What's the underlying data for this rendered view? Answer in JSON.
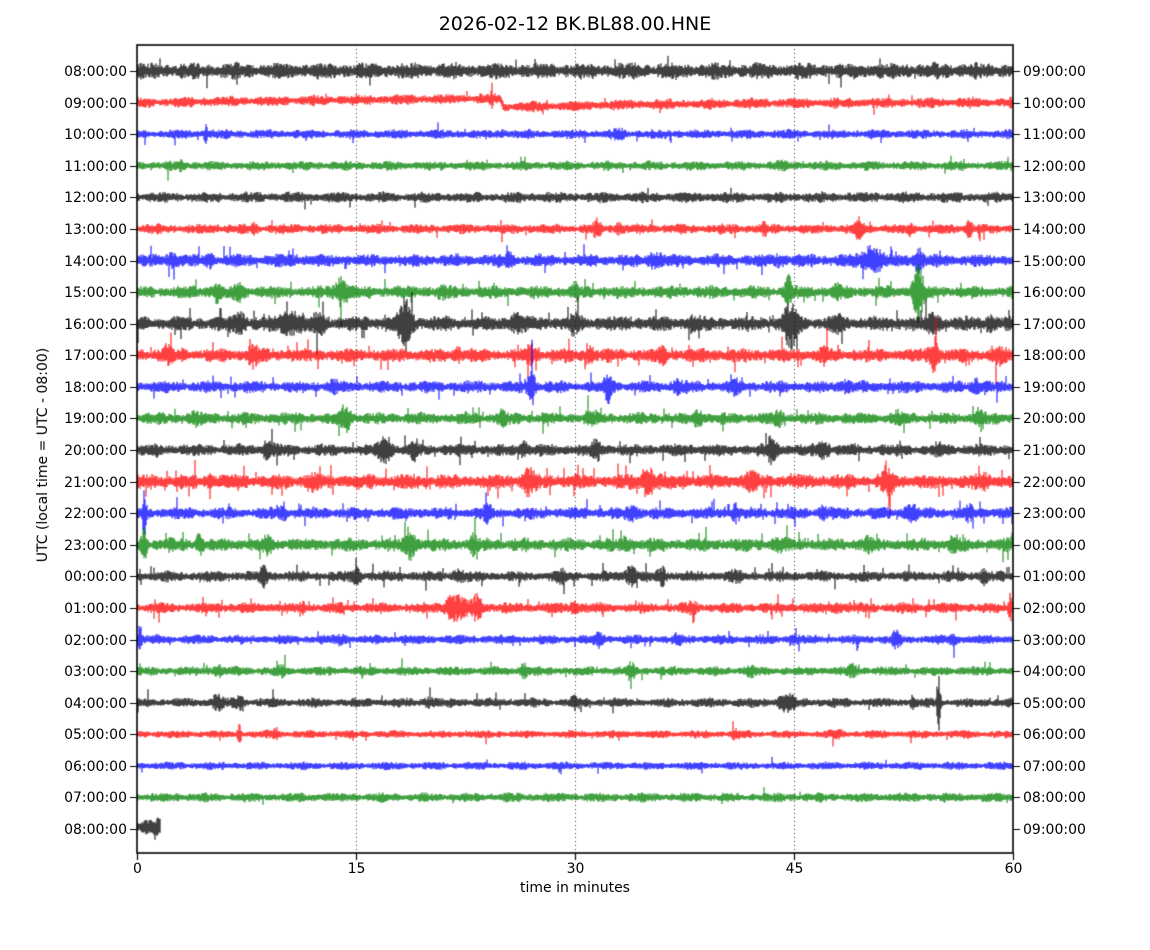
{
  "chart_data": {
    "type": "line",
    "subtype": "helicorder-dayplot",
    "title": "2026-02-12 BK.BL88.00.HNE",
    "date": "2026-02-12",
    "station_id": "BK.BL88.00.HNE",
    "xlabel": "time in minutes",
    "ylabel": "UTC (local time = UTC - 08:00)",
    "xlim": [
      0,
      60
    ],
    "xticks": [
      "0",
      "15",
      "30",
      "45",
      "60"
    ],
    "grid_minutes": [
      15,
      30,
      45
    ],
    "minutes_per_line": 60,
    "utc_offset_hours": -8,
    "grid_on": true,
    "legend": "none",
    "trace_colors": {
      "black": "#000000",
      "red": "#ff0000",
      "blue": "#0000ff",
      "green": "#008000"
    },
    "rows": [
      {
        "utc": "08:00:00",
        "right": "09:00:00",
        "color": "black",
        "amp": 4.8,
        "sp": 0.01,
        "events": []
      },
      {
        "utc": "09:00:00",
        "right": "10:00:00",
        "color": "red",
        "amp": 3.2,
        "sp": 0.008,
        "events": [
          [
            24.3,
            8,
            0.08
          ]
        ],
        "shift": [
          [
            0,
            0
          ],
          [
            5,
            -1
          ],
          [
            15,
            -2.5
          ],
          [
            24,
            -4
          ],
          [
            24.9,
            -4.2
          ],
          [
            25.1,
            4.5
          ],
          [
            28,
            4
          ],
          [
            34,
            2
          ],
          [
            45,
            0.5
          ],
          [
            60,
            0
          ]
        ]
      },
      {
        "utc": "10:00:00",
        "right": "11:00:00",
        "color": "blue",
        "amp": 2.8,
        "sp": 0.02,
        "events": [
          [
            4.7,
            6,
            0.12
          ],
          [
            25,
            1.5,
            0.3
          ],
          [
            33,
            2,
            0.3
          ]
        ]
      },
      {
        "utc": "11:00:00",
        "right": "12:00:00",
        "color": "green",
        "amp": 2.8,
        "sp": 0.015,
        "events": [
          [
            3,
            1.5,
            0.3
          ],
          [
            44,
            1.5,
            0.3
          ]
        ]
      },
      {
        "utc": "12:00:00",
        "right": "13:00:00",
        "color": "black",
        "amp": 3.2,
        "sp": 0.01,
        "events": []
      },
      {
        "utc": "13:00:00",
        "right": "14:00:00",
        "color": "red",
        "amp": 3.0,
        "sp": 0.03,
        "events": [
          [
            8,
            2.5,
            0.2
          ],
          [
            31.5,
            4.5,
            0.25
          ],
          [
            33,
            3.5,
            0.2
          ],
          [
            43,
            2.5,
            0.2
          ],
          [
            49.5,
            5,
            0.3
          ],
          [
            53,
            3,
            0.2
          ],
          [
            57,
            4.5,
            0.25
          ]
        ]
      },
      {
        "utc": "14:00:00",
        "right": "15:00:00",
        "color": "blue",
        "amp": 3.8,
        "sp": 0.03,
        "events": [
          [
            2.5,
            4,
            0.4
          ],
          [
            5,
            3,
            0.3
          ],
          [
            25.5,
            3,
            0.3
          ],
          [
            35.5,
            5,
            0.4
          ],
          [
            44,
            3,
            0.3
          ],
          [
            50.3,
            8,
            0.7
          ],
          [
            53.5,
            7,
            0.3
          ]
        ]
      },
      {
        "utc": "15:00:00",
        "right": "16:00:00",
        "color": "green",
        "amp": 3.8,
        "sp": 0.04,
        "events": [
          [
            5.5,
            5,
            0.4
          ],
          [
            7,
            5,
            0.3
          ],
          [
            14,
            8,
            0.5
          ],
          [
            21,
            3,
            0.3
          ],
          [
            30,
            3,
            0.3
          ],
          [
            44.6,
            11,
            0.2
          ],
          [
            48,
            3,
            0.3
          ],
          [
            53.5,
            20,
            0.35
          ]
        ]
      },
      {
        "utc": "16:00:00",
        "right": "17:00:00",
        "color": "black",
        "amp": 4.5,
        "sp": 0.06,
        "events": [
          [
            7,
            5,
            0.5
          ],
          [
            10.5,
            6,
            0.8
          ],
          [
            12.5,
            5,
            0.4
          ],
          [
            18.4,
            16,
            0.45
          ],
          [
            26,
            4,
            0.5
          ],
          [
            30,
            4,
            0.4
          ],
          [
            38,
            3,
            0.3
          ],
          [
            44.8,
            13,
            0.5
          ],
          [
            48,
            4,
            0.3
          ],
          [
            54.5,
            6,
            0.4
          ],
          [
            58.5,
            5,
            0.3
          ]
        ]
      },
      {
        "utc": "17:00:00",
        "right": "18:00:00",
        "color": "red",
        "amp": 4.2,
        "sp": 0.05,
        "events": [
          [
            2,
            4,
            0.3
          ],
          [
            8,
            5,
            0.4
          ],
          [
            22,
            3,
            0.3
          ],
          [
            27,
            5,
            0.3
          ],
          [
            31,
            4,
            0.3
          ],
          [
            36,
            3,
            0.3
          ],
          [
            47,
            3,
            0.3
          ],
          [
            54.6,
            10,
            0.35
          ],
          [
            59,
            4,
            0.3
          ]
        ]
      },
      {
        "utc": "18:00:00",
        "right": "19:00:00",
        "color": "blue",
        "amp": 3.6,
        "sp": 0.04,
        "events": [
          [
            13.5,
            3,
            0.3
          ],
          [
            27,
            12,
            0.25
          ],
          [
            32.3,
            9,
            0.25
          ],
          [
            37,
            4,
            0.3
          ],
          [
            41,
            3.5,
            0.3
          ],
          [
            48.5,
            3,
            0.3
          ],
          [
            57.5,
            4,
            0.3
          ]
        ]
      },
      {
        "utc": "19:00:00",
        "right": "20:00:00",
        "color": "green",
        "amp": 3.6,
        "sp": 0.04,
        "events": [
          [
            4,
            3,
            0.3
          ],
          [
            14.3,
            9,
            0.3
          ],
          [
            25,
            3,
            0.3
          ],
          [
            31,
            3,
            0.3
          ],
          [
            38.5,
            5,
            0.3
          ],
          [
            44,
            3,
            0.3
          ],
          [
            52,
            3,
            0.3
          ],
          [
            57.7,
            6,
            0.3
          ]
        ]
      },
      {
        "utc": "20:00:00",
        "right": "21:00:00",
        "color": "black",
        "amp": 3.6,
        "sp": 0.04,
        "events": [
          [
            9,
            5,
            0.4
          ],
          [
            17,
            10,
            0.4
          ],
          [
            19,
            5,
            0.3
          ],
          [
            26.5,
            4,
            0.3
          ],
          [
            31.5,
            5,
            0.3
          ],
          [
            43.5,
            7,
            0.4
          ],
          [
            47,
            5,
            0.4
          ],
          [
            55,
            3,
            0.3
          ]
        ]
      },
      {
        "utc": "21:00:00",
        "right": "22:00:00",
        "color": "red",
        "amp": 4.5,
        "sp": 0.06,
        "events": [
          [
            5,
            3,
            0.3
          ],
          [
            12,
            3,
            0.3
          ],
          [
            26.8,
            8,
            0.35
          ],
          [
            35,
            8,
            0.5
          ],
          [
            42,
            4,
            0.4
          ],
          [
            51.5,
            5,
            0.5
          ],
          [
            58,
            3,
            0.3
          ]
        ]
      },
      {
        "utc": "22:00:00",
        "right": "23:00:00",
        "color": "blue",
        "amp": 3.6,
        "sp": 0.04,
        "events": [
          [
            0.5,
            12,
            0.15
          ],
          [
            10,
            3,
            0.3
          ],
          [
            24,
            4,
            0.3
          ],
          [
            34,
            4,
            0.4
          ],
          [
            41,
            4,
            0.3
          ],
          [
            47,
            3,
            0.3
          ],
          [
            53,
            5,
            0.4
          ],
          [
            57,
            3,
            0.3
          ]
        ]
      },
      {
        "utc": "23:00:00",
        "right": "00:00:00",
        "color": "green",
        "amp": 4.0,
        "sp": 0.05,
        "events": [
          [
            0.5,
            8,
            0.2
          ],
          [
            4.3,
            5,
            0.3
          ],
          [
            9,
            4,
            0.3
          ],
          [
            18.7,
            9,
            0.35
          ],
          [
            23,
            4,
            0.3
          ],
          [
            33.5,
            4,
            0.3
          ],
          [
            44,
            3,
            0.3
          ],
          [
            50,
            3,
            0.3
          ],
          [
            56,
            4,
            0.3
          ]
        ]
      },
      {
        "utc": "00:00:00",
        "right": "01:00:00",
        "color": "black",
        "amp": 3.2,
        "sp": 0.04,
        "events": [
          [
            8.7,
            5,
            0.3
          ],
          [
            15,
            4,
            0.4
          ],
          [
            22,
            3,
            0.4
          ],
          [
            29,
            3,
            0.3
          ],
          [
            33.8,
            6,
            0.35
          ],
          [
            36,
            5,
            0.3
          ],
          [
            41,
            2.5,
            0.3
          ],
          [
            58,
            4,
            0.3
          ]
        ]
      },
      {
        "utc": "01:00:00",
        "right": "02:00:00",
        "color": "red",
        "amp": 3.2,
        "sp": 0.05,
        "events": [
          [
            11.4,
            4,
            0.15
          ],
          [
            21.8,
            8,
            0.7
          ],
          [
            23.3,
            7,
            0.4
          ],
          [
            30,
            2.5,
            0.4
          ],
          [
            38,
            2.5,
            0.3
          ],
          [
            48,
            2.5,
            0.3
          ],
          [
            59.8,
            9,
            0.12
          ]
        ]
      },
      {
        "utc": "02:00:00",
        "right": "03:00:00",
        "color": "blue",
        "amp": 2.8,
        "sp": 0.03,
        "events": [
          [
            0.2,
            11,
            0.12
          ],
          [
            14,
            2.5,
            0.3
          ],
          [
            31.7,
            4,
            0.3
          ],
          [
            37,
            2.5,
            0.3
          ],
          [
            45,
            2.5,
            0.3
          ],
          [
            52,
            4,
            0.3
          ],
          [
            56,
            2.5,
            0.3
          ]
        ]
      },
      {
        "utc": "03:00:00",
        "right": "04:00:00",
        "color": "green",
        "amp": 2.8,
        "sp": 0.03,
        "events": [
          [
            5.5,
            4,
            0.25
          ],
          [
            10,
            2.5,
            0.3
          ],
          [
            26.5,
            4,
            0.3
          ],
          [
            33.8,
            4,
            0.3
          ],
          [
            42,
            2.5,
            0.3
          ],
          [
            49,
            2.5,
            0.3
          ]
        ]
      },
      {
        "utc": "04:00:00",
        "right": "05:00:00",
        "color": "black",
        "amp": 2.8,
        "sp": 0.03,
        "events": [
          [
            5.5,
            4,
            0.4
          ],
          [
            7,
            4,
            0.3
          ],
          [
            20,
            2.5,
            0.3
          ],
          [
            30,
            2.5,
            0.3
          ],
          [
            44.5,
            5,
            0.5
          ],
          [
            53.1,
            5,
            0.12
          ],
          [
            54.9,
            19,
            0.12
          ]
        ]
      },
      {
        "utc": "05:00:00",
        "right": "06:00:00",
        "color": "red",
        "amp": 2.4,
        "sp": 0.02,
        "events": [
          [
            7,
            5,
            0.15
          ],
          [
            9.5,
            4,
            0.15
          ],
          [
            41,
            2,
            0.3
          ],
          [
            48,
            1.5,
            0.3
          ]
        ]
      },
      {
        "utc": "06:00:00",
        "right": "07:00:00",
        "color": "blue",
        "amp": 2.4,
        "sp": 0.008,
        "events": []
      },
      {
        "utc": "07:00:00",
        "right": "08:00:00",
        "color": "green",
        "amp": 2.8,
        "sp": 0.008,
        "events": []
      },
      {
        "utc": "08:00:00",
        "right": "09:00:00",
        "color": "black",
        "amp": 5.0,
        "sp": 0.01,
        "events": [],
        "end": 1.6,
        "shift": [
          [
            0,
            -2
          ],
          [
            1.6,
            -2
          ]
        ]
      }
    ]
  }
}
